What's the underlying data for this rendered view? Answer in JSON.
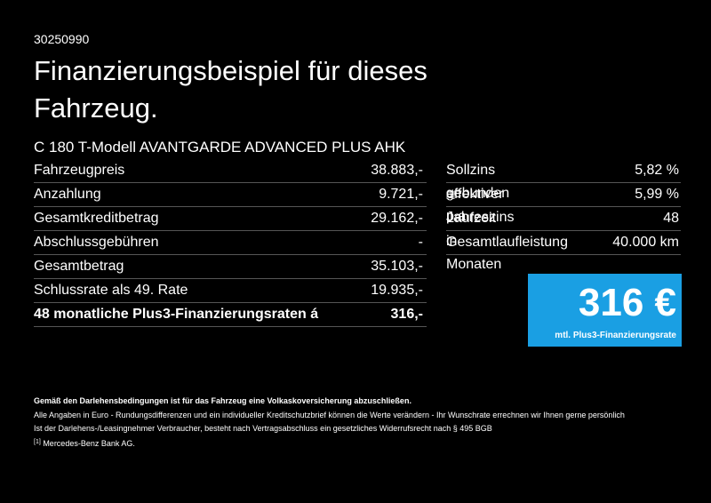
{
  "header": {
    "code": "30250990",
    "title_line1": "Finanzierungsbeispiel für dieses",
    "title_line2": "Fahrzeug."
  },
  "model": "C 180 T-Modell AVANTGARDE ADVANCED PLUS AHK",
  "left_table": {
    "rows": [
      [
        "Fahrzeugpreis",
        "38.883,-"
      ],
      [
        "Anzahlung",
        "9.721,-"
      ],
      [
        "Gesamtkreditbetrag",
        "29.162,-"
      ],
      [
        "Abschlussgebühren",
        "-"
      ],
      [
        "Gesamtbetrag",
        "35.103,-"
      ],
      [
        "Schlussrate als 49. Rate",
        "19.935,-"
      ],
      [
        "48 monatliche Plus3-Finanzierungsraten á",
        "316,-"
      ]
    ]
  },
  "right_table": {
    "rows": [
      {
        "label": "Sollzins gebunden p.a.",
        "note": "",
        "value": "5,82 %"
      },
      {
        "label": "effektiver Jahreszins",
        "note": "[1]",
        "value": "5,99 %"
      },
      {
        "label": "Laufzeit in Monaten",
        "note": "",
        "value": "48"
      },
      {
        "label": "Gesamtlaufleistung",
        "note": "",
        "value": "40.000 km"
      }
    ]
  },
  "rate_box": {
    "amount": "316 €",
    "caption": "mtl. Plus3-Finanzierungsrate"
  },
  "footer": {
    "bold_line": "Gemäß den Darlehensbedingungen ist für das Fahrzeug eine Volkaskoversicherung abzuschließen.",
    "line1": "Alle Angaben in Euro - Rundungsdifferenzen und ein individueller Kreditschutzbrief können die Werte verändern - Ihr Wunschrate errechnen wir Ihnen gerne persönlich",
    "line2": "Ist der Darlehens-/Leasingnehmer Verbraucher, besteht nach Vertragsabschluss ein gesetzliches Widerrufsrecht nach § 495 BGB",
    "footnote_mark": "[1]",
    "footnote_text": "Mercedes-Benz Bank AG."
  }
}
